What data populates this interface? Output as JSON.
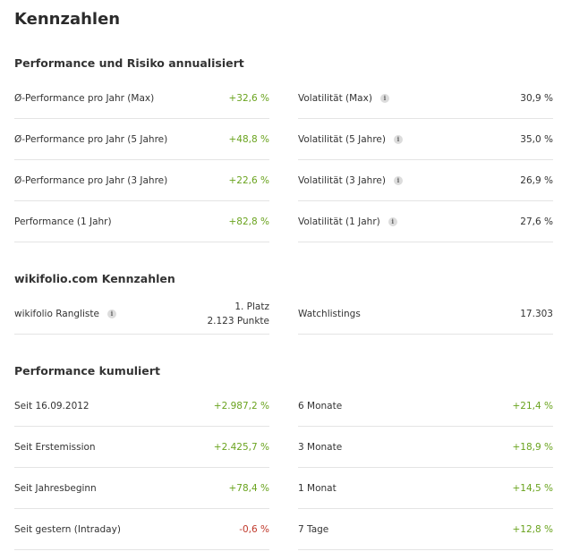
{
  "page_title": "Kennzahlen",
  "colors": {
    "positive": "#6aa31e",
    "negative": "#c0392b",
    "divider": "#e4e4e4"
  },
  "icons": {
    "info": "info-icon"
  },
  "sections": {
    "risk": {
      "title": "Performance und Risiko annualisiert",
      "left": [
        {
          "label": "Ø-Performance pro Jahr (Max)",
          "value": "+32,6 %"
        },
        {
          "label": "Ø-Performance pro Jahr (5 Jahre)",
          "value": "+48,8 %"
        },
        {
          "label": "Ø-Performance pro Jahr (3 Jahre)",
          "value": "+22,6 %"
        },
        {
          "label": "Performance (1 Jahr)",
          "value": "+82,8 %"
        }
      ],
      "right": [
        {
          "label": "Volatilität (Max)",
          "value": "30,9 %"
        },
        {
          "label": "Volatilität (5 Jahre)",
          "value": "35,0 %"
        },
        {
          "label": "Volatilität (3 Jahre)",
          "value": "26,9 %"
        },
        {
          "label": "Volatilität (1 Jahr)",
          "value": "27,6 %"
        }
      ]
    },
    "wikifolio": {
      "title": "wikifolio.com Kennzahlen",
      "ranking": {
        "label": "wikifolio Rangliste",
        "place": "1. Platz",
        "points": "2.123 Punkte"
      },
      "watchlistings": {
        "label": "Watchlistings",
        "value": "17.303"
      }
    },
    "cumulative": {
      "title": "Performance kumuliert",
      "left": [
        {
          "label": "Seit 16.09.2012",
          "value": "+2.987,2 %"
        },
        {
          "label": "Seit Erstemission",
          "value": "+2.425,7 %"
        },
        {
          "label": "Seit Jahresbeginn",
          "value": "+78,4 %"
        },
        {
          "label": "Seit gestern (Intraday)",
          "value": "-0,6 %"
        }
      ],
      "right": [
        {
          "label": "6 Monate",
          "value": "+21,4 %"
        },
        {
          "label": "3 Monate",
          "value": "+18,9 %"
        },
        {
          "label": "1 Monat",
          "value": "+14,5 %"
        },
        {
          "label": "7 Tage",
          "value": "+12,8 %"
        }
      ]
    }
  }
}
